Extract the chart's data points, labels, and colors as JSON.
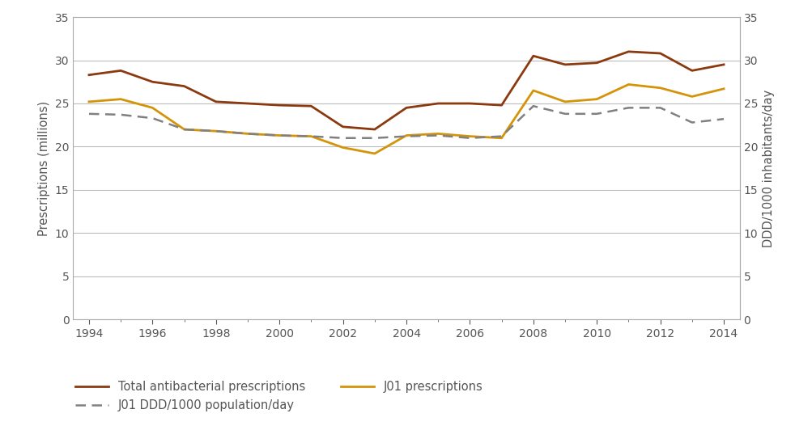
{
  "years": [
    1994,
    1995,
    1996,
    1997,
    1998,
    1999,
    2000,
    2001,
    2002,
    2003,
    2004,
    2005,
    2006,
    2007,
    2008,
    2009,
    2010,
    2011,
    2012,
    2013,
    2014
  ],
  "total_antibacterial": [
    28.3,
    28.8,
    27.5,
    27.0,
    25.2,
    25.0,
    24.8,
    24.7,
    22.3,
    22.0,
    24.5,
    25.0,
    25.0,
    24.8,
    30.5,
    29.5,
    29.7,
    31.0,
    30.8,
    28.8,
    29.5
  ],
  "j01_prescriptions": [
    25.2,
    25.5,
    24.5,
    22.0,
    21.8,
    21.5,
    21.3,
    21.2,
    19.9,
    19.2,
    21.3,
    21.5,
    21.2,
    21.0,
    26.5,
    25.2,
    25.5,
    27.2,
    26.8,
    25.8,
    26.7
  ],
  "j01_ddd": [
    23.8,
    23.7,
    23.3,
    22.0,
    21.8,
    21.5,
    21.3,
    21.2,
    21.0,
    21.0,
    21.2,
    21.3,
    21.0,
    21.2,
    24.7,
    23.8,
    23.8,
    24.5,
    24.5,
    22.8,
    23.2
  ],
  "total_color": "#8B3A10",
  "j01_presc_color": "#D4940A",
  "j01_ddd_color": "#808080",
  "spine_color": "#AAAAAA",
  "ylabel_left": "Prescriptions (millions)",
  "ylabel_right": "DDD/1000 inhabitants/day",
  "ylim": [
    0,
    35
  ],
  "yticks": [
    0,
    5,
    10,
    15,
    20,
    25,
    30,
    35
  ],
  "xticks": [
    1994,
    1996,
    1998,
    2000,
    2002,
    2004,
    2006,
    2008,
    2010,
    2012,
    2014
  ],
  "legend_total": "Total antibacterial prescriptions",
  "legend_j01_presc": "J01 prescriptions",
  "legend_j01_ddd": "J01 DDD/1000 population/day",
  "grid_color": "#BBBBBB",
  "text_color": "#555555"
}
